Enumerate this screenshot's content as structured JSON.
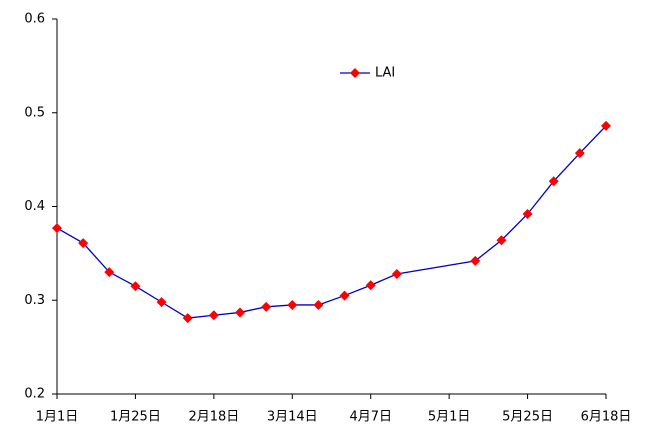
{
  "chart_data": {
    "type": "line",
    "x": [
      0,
      8,
      16,
      24,
      32,
      40,
      48,
      56,
      64,
      72,
      80,
      88,
      96,
      104,
      128,
      136,
      144,
      152,
      160,
      168
    ],
    "series": [
      {
        "name": "LAI",
        "color": "#0000cc",
        "marker_color": "#ff0000",
        "values": [
          0.377,
          0.361,
          0.33,
          0.315,
          0.298,
          0.281,
          0.284,
          0.287,
          0.293,
          0.295,
          0.295,
          0.305,
          0.316,
          0.328,
          0.342,
          0.364,
          0.392,
          0.427,
          0.457,
          0.486
        ]
      }
    ],
    "xlim": [
      0,
      168
    ],
    "xticks": [
      {
        "value": 0,
        "label": "1月1日"
      },
      {
        "value": 24,
        "label": "1月25日"
      },
      {
        "value": 48,
        "label": "2月18日"
      },
      {
        "value": 72,
        "label": "3月14日"
      },
      {
        "value": 96,
        "label": "4月7日"
      },
      {
        "value": 120,
        "label": "5月1日"
      },
      {
        "value": 144,
        "label": "5月25日"
      },
      {
        "value": 168,
        "label": "6月18日"
      }
    ],
    "ylim": [
      0.2,
      0.6
    ],
    "yticks": [
      0.2,
      0.3,
      0.4,
      0.5,
      0.6
    ],
    "grid": false,
    "legend": "top-center"
  }
}
